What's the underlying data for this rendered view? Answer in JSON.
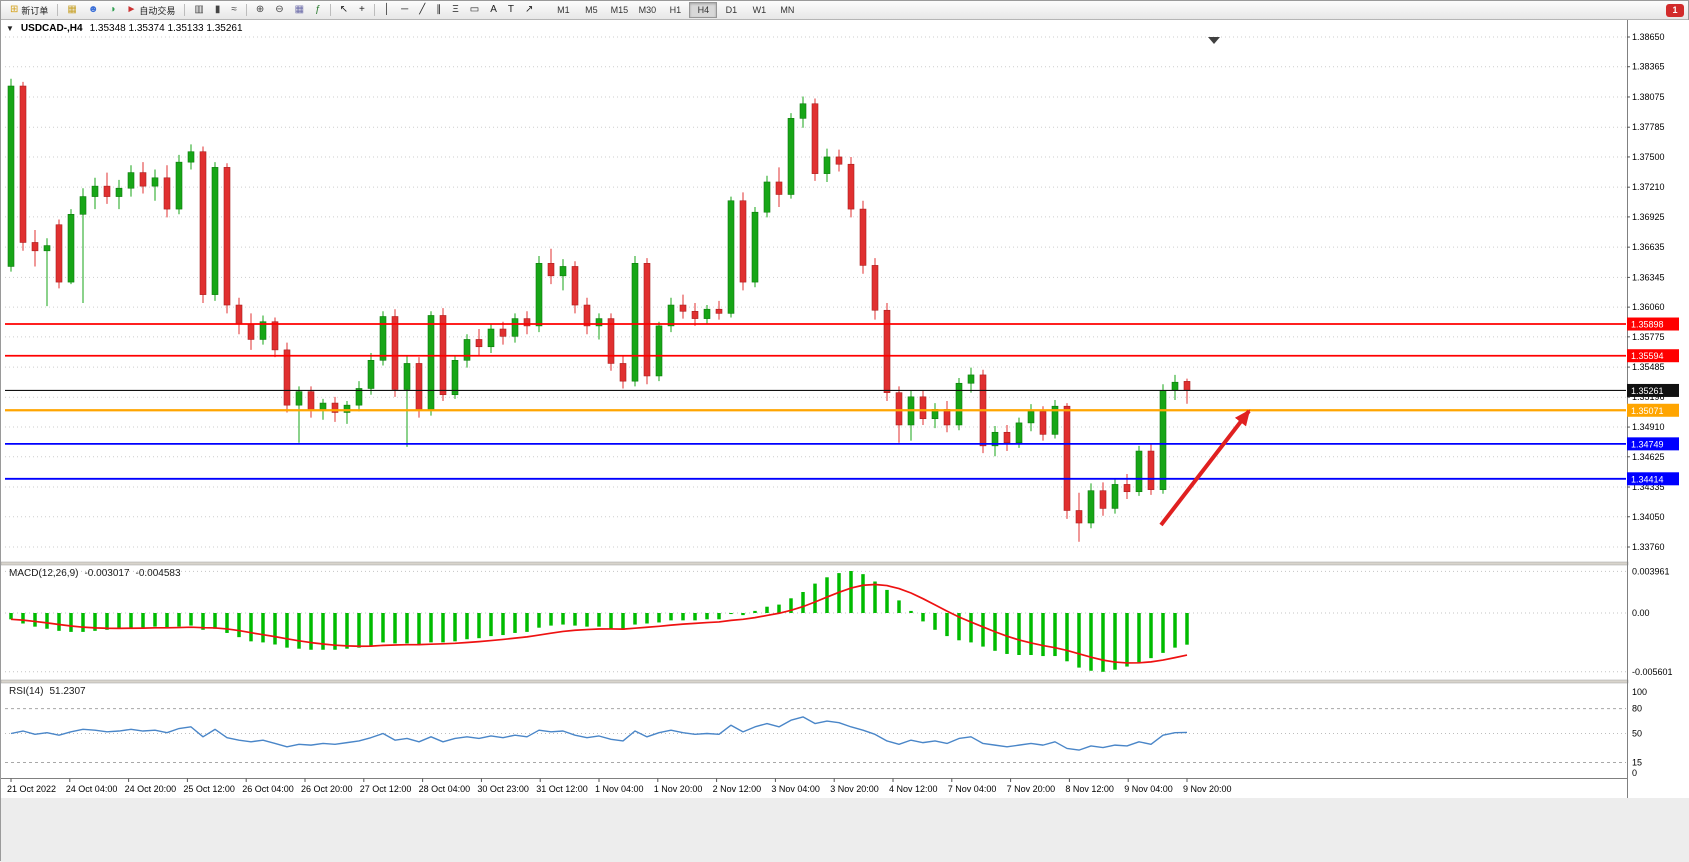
{
  "toolbar": {
    "groups": [
      {
        "type": "button",
        "name": "new-order-button",
        "icon": {
          "name": "new-order-icon",
          "glyph": "⊞",
          "color": "#d4a017"
        },
        "label": "新订单"
      },
      {
        "type": "sep"
      },
      {
        "type": "icon",
        "name": "charts-grid-button",
        "icon": {
          "name": "charts-grid-icon",
          "glyph": "▦",
          "color": "#c8a22a"
        }
      },
      {
        "type": "icon",
        "name": "market-watch-button",
        "icon": {
          "name": "market-watch-icon",
          "glyph": "☻",
          "color": "#3a6fd8"
        }
      },
      {
        "type": "icon",
        "name": "strategy-tester-button",
        "icon": {
          "name": "strategy-tester-icon",
          "glyph": "◑",
          "color": "#2e9e4f"
        }
      },
      {
        "type": "button",
        "name": "auto-trading-button",
        "icon": {
          "name": "auto-trading-icon",
          "glyph": "►",
          "color": "#cc3333"
        },
        "label": "自动交易"
      },
      {
        "type": "sep"
      },
      {
        "type": "icon",
        "name": "bar-chart-button",
        "icon": {
          "name": "bar-chart-icon",
          "glyph": "▥",
          "color": "#444"
        }
      },
      {
        "type": "icon",
        "name": "candlestick-chart-button",
        "icon": {
          "name": "candlestick-chart-icon",
          "glyph": "▮",
          "color": "#444"
        }
      },
      {
        "type": "icon",
        "name": "line-chart-button",
        "icon": {
          "name": "line-chart-icon",
          "glyph": "≈",
          "color": "#444"
        }
      },
      {
        "type": "sep"
      },
      {
        "type": "icon",
        "name": "zoom-in-button",
        "icon": {
          "name": "zoom-in-icon",
          "glyph": "⊕",
          "color": "#444"
        }
      },
      {
        "type": "icon",
        "name": "zoom-out-button",
        "icon": {
          "name": "zoom-out-icon",
          "glyph": "⊖",
          "color": "#444"
        }
      },
      {
        "type": "icon",
        "name": "tile-windows-button",
        "icon": {
          "name": "tile-windows-icon",
          "glyph": "▦",
          "color": "#6a6aa8"
        }
      },
      {
        "type": "icon",
        "name": "indicators-button",
        "icon": {
          "name": "indicators-icon",
          "glyph": "ƒ",
          "color": "#2e7d32"
        }
      },
      {
        "type": "sep"
      },
      {
        "type": "icon",
        "name": "cursor-button",
        "icon": {
          "name": "cursor-icon",
          "glyph": "↖",
          "color": "#222"
        }
      },
      {
        "type": "icon",
        "name": "crosshair-button",
        "icon": {
          "name": "crosshair-icon",
          "glyph": "+",
          "color": "#222"
        }
      },
      {
        "type": "sep"
      },
      {
        "type": "icon",
        "name": "vertical-line-button",
        "icon": {
          "name": "vertical-line-icon",
          "glyph": "│",
          "color": "#222"
        }
      },
      {
        "type": "icon",
        "name": "horizontal-line-button",
        "icon": {
          "name": "horizontal-line-icon",
          "glyph": "─",
          "color": "#222"
        }
      },
      {
        "type": "icon",
        "name": "trendline-button",
        "icon": {
          "name": "trendline-icon",
          "glyph": "╱",
          "color": "#222"
        }
      },
      {
        "type": "icon",
        "name": "channel-button",
        "icon": {
          "name": "channel-icon",
          "glyph": "∥",
          "color": "#222"
        }
      },
      {
        "type": "icon",
        "name": "fibonacci-button",
        "icon": {
          "name": "fibonacci-icon",
          "glyph": "Ξ",
          "color": "#222"
        }
      },
      {
        "type": "icon",
        "name": "shapes-button",
        "icon": {
          "name": "shapes-icon",
          "glyph": "▭",
          "color": "#222"
        }
      },
      {
        "type": "icon",
        "name": "text-button",
        "icon": {
          "name": "text-icon",
          "glyph": "A",
          "color": "#222"
        }
      },
      {
        "type": "icon",
        "name": "text-label-button",
        "icon": {
          "name": "text-label-icon",
          "glyph": "T",
          "color": "#222"
        }
      },
      {
        "type": "icon",
        "name": "arrows-button",
        "icon": {
          "name": "arrows-icon",
          "glyph": "↗",
          "color": "#222"
        }
      }
    ],
    "timeframes": [
      "M1",
      "M5",
      "M15",
      "M30",
      "H1",
      "H4",
      "D1",
      "W1",
      "MN"
    ],
    "active_timeframe": "H4",
    "notification_badge": "1"
  },
  "chart_header": {
    "menu_icon": "▼",
    "title": "USDCAD-,H4",
    "ohlc_text": "1.35348 1.35374 1.35133 1.35261"
  },
  "chart_data": {
    "type": "candlestick",
    "symbol": "USDCAD-",
    "timeframe": "H4",
    "title": "USDCAD-,H4",
    "ohlc_display": {
      "open": "1.35348",
      "high": "1.35374",
      "low": "1.35133",
      "close": "1.35261"
    },
    "price_ticks": [
      "1.38650",
      "1.38365",
      "1.38075",
      "1.37785",
      "1.37500",
      "1.37210",
      "1.36925",
      "1.36635",
      "1.36345",
      "1.36060",
      "1.35775",
      "1.35485",
      "1.35196",
      "1.34910",
      "1.34625",
      "1.34335",
      "1.34050",
      "1.33760"
    ],
    "ylim": [
      1.3376,
      1.3865
    ],
    "time_labels": [
      "21 Oct 2022",
      "24 Oct 04:00",
      "24 Oct 20:00",
      "25 Oct 12:00",
      "26 Oct 04:00",
      "26 Oct 20:00",
      "27 Oct 12:00",
      "28 Oct 04:00",
      "30 Oct 23:00",
      "31 Oct 12:00",
      "1 Nov 04:00",
      "1 Nov 20:00",
      "2 Nov 12:00",
      "3 Nov 04:00",
      "3 Nov 20:00",
      "4 Nov 12:00",
      "7 Nov 04:00",
      "7 Nov 20:00",
      "8 Nov 12:00",
      "9 Nov 04:00",
      "9 Nov 20:00"
    ],
    "colors": {
      "up": "#17a617",
      "up_stroke": "#0c7a0c",
      "down": "#e03030",
      "down_stroke": "#a81e1e",
      "grid": "#cdcdcd",
      "axis": "#808080"
    },
    "candles": [
      [
        1.3645,
        1.3825,
        1.364,
        1.3818
      ],
      [
        1.3818,
        1.3822,
        1.366,
        1.3668
      ],
      [
        1.3668,
        1.368,
        1.3645,
        1.366
      ],
      [
        1.366,
        1.3672,
        1.3607,
        1.3665
      ],
      [
        1.3685,
        1.369,
        1.3624,
        1.363
      ],
      [
        1.363,
        1.37,
        1.3628,
        1.3695
      ],
      [
        1.3695,
        1.372,
        1.361,
        1.3712
      ],
      [
        1.3712,
        1.373,
        1.37,
        1.3722
      ],
      [
        1.3722,
        1.3735,
        1.3705,
        1.3712
      ],
      [
        1.3712,
        1.3728,
        1.37,
        1.372
      ],
      [
        1.372,
        1.3742,
        1.3712,
        1.3735
      ],
      [
        1.3735,
        1.3745,
        1.3715,
        1.3722
      ],
      [
        1.3722,
        1.3738,
        1.3708,
        1.373
      ],
      [
        1.373,
        1.3742,
        1.3692,
        1.37
      ],
      [
        1.37,
        1.3752,
        1.3695,
        1.3745
      ],
      [
        1.3745,
        1.3762,
        1.3738,
        1.3755
      ],
      [
        1.3755,
        1.376,
        1.361,
        1.3618
      ],
      [
        1.3618,
        1.3745,
        1.3612,
        1.374
      ],
      [
        1.374,
        1.3744,
        1.36,
        1.3608
      ],
      [
        1.3608,
        1.3615,
        1.358,
        1.359
      ],
      [
        1.359,
        1.36,
        1.3565,
        1.3575
      ],
      [
        1.3575,
        1.3598,
        1.357,
        1.3592
      ],
      [
        1.3592,
        1.3596,
        1.3558,
        1.3565
      ],
      [
        1.3565,
        1.3572,
        1.3505,
        1.3512
      ],
      [
        1.3512,
        1.353,
        1.3476,
        1.3525
      ],
      [
        1.3525,
        1.353,
        1.35,
        1.3507
      ],
      [
        1.3507,
        1.3518,
        1.3498,
        1.3514
      ],
      [
        1.3514,
        1.352,
        1.3496,
        1.3505
      ],
      [
        1.3505,
        1.3516,
        1.3494,
        1.3512
      ],
      [
        1.3512,
        1.3535,
        1.3506,
        1.3528
      ],
      [
        1.3528,
        1.3562,
        1.3522,
        1.3555
      ],
      [
        1.3555,
        1.3602,
        1.355,
        1.3597
      ],
      [
        1.3597,
        1.3604,
        1.352,
        1.3527
      ],
      [
        1.3527,
        1.356,
        1.3472,
        1.3552
      ],
      [
        1.3552,
        1.3558,
        1.35,
        1.3508
      ],
      [
        1.3508,
        1.3602,
        1.3502,
        1.3598
      ],
      [
        1.3598,
        1.3605,
        1.3516,
        1.3522
      ],
      [
        1.3522,
        1.356,
        1.3518,
        1.3555
      ],
      [
        1.3555,
        1.358,
        1.3548,
        1.3575
      ],
      [
        1.3575,
        1.3585,
        1.356,
        1.3568
      ],
      [
        1.3568,
        1.359,
        1.3562,
        1.3585
      ],
      [
        1.3585,
        1.3592,
        1.357,
        1.3578
      ],
      [
        1.3578,
        1.36,
        1.3572,
        1.3595
      ],
      [
        1.3595,
        1.3602,
        1.358,
        1.3588
      ],
      [
        1.3588,
        1.3655,
        1.3582,
        1.3648
      ],
      [
        1.3648,
        1.3662,
        1.3628,
        1.3636
      ],
      [
        1.3636,
        1.3652,
        1.3622,
        1.3645
      ],
      [
        1.3645,
        1.365,
        1.36,
        1.3608
      ],
      [
        1.3608,
        1.3615,
        1.358,
        1.3588
      ],
      [
        1.3588,
        1.36,
        1.3575,
        1.3595
      ],
      [
        1.3595,
        1.36,
        1.3545,
        1.3552
      ],
      [
        1.3552,
        1.356,
        1.3528,
        1.3535
      ],
      [
        1.3535,
        1.3655,
        1.353,
        1.3648
      ],
      [
        1.3648,
        1.3653,
        1.3532,
        1.354
      ],
      [
        1.354,
        1.3592,
        1.3535,
        1.3588
      ],
      [
        1.3588,
        1.3615,
        1.3582,
        1.3608
      ],
      [
        1.3608,
        1.3618,
        1.3595,
        1.3602
      ],
      [
        1.3602,
        1.361,
        1.3588,
        1.3595
      ],
      [
        1.3595,
        1.3608,
        1.359,
        1.3604
      ],
      [
        1.3604,
        1.3612,
        1.3594,
        1.36
      ],
      [
        1.36,
        1.3712,
        1.3596,
        1.3708
      ],
      [
        1.3708,
        1.3716,
        1.3622,
        1.363
      ],
      [
        1.363,
        1.3702,
        1.3625,
        1.3697
      ],
      [
        1.3697,
        1.3732,
        1.3692,
        1.3726
      ],
      [
        1.3726,
        1.374,
        1.3702,
        1.3714
      ],
      [
        1.3714,
        1.3792,
        1.371,
        1.3787
      ],
      [
        1.3787,
        1.3808,
        1.3778,
        1.3801
      ],
      [
        1.3801,
        1.3806,
        1.3727,
        1.3734
      ],
      [
        1.3734,
        1.3758,
        1.3726,
        1.375
      ],
      [
        1.375,
        1.3757,
        1.3736,
        1.3743
      ],
      [
        1.3743,
        1.375,
        1.3692,
        1.37
      ],
      [
        1.37,
        1.3708,
        1.3638,
        1.3646
      ],
      [
        1.3646,
        1.3653,
        1.3594,
        1.3603
      ],
      [
        1.3603,
        1.361,
        1.3516,
        1.3524
      ],
      [
        1.3524,
        1.353,
        1.3476,
        1.3493
      ],
      [
        1.3493,
        1.3526,
        1.3478,
        1.352
      ],
      [
        1.352,
        1.3526,
        1.3493,
        1.3499
      ],
      [
        1.3499,
        1.3514,
        1.349,
        1.3508
      ],
      [
        1.3508,
        1.3516,
        1.3486,
        1.3493
      ],
      [
        1.3493,
        1.3538,
        1.3488,
        1.3533
      ],
      [
        1.3533,
        1.3548,
        1.3524,
        1.3541
      ],
      [
        1.3541,
        1.3546,
        1.3466,
        1.3473
      ],
      [
        1.3473,
        1.3492,
        1.3463,
        1.3486
      ],
      [
        1.3486,
        1.3493,
        1.3468,
        1.3476
      ],
      [
        1.3476,
        1.35,
        1.3471,
        1.3495
      ],
      [
        1.3495,
        1.3513,
        1.3487,
        1.3506
      ],
      [
        1.3506,
        1.3511,
        1.3478,
        1.3484
      ],
      [
        1.3484,
        1.3517,
        1.348,
        1.3511
      ],
      [
        1.3511,
        1.3514,
        1.3403,
        1.3411
      ],
      [
        1.3411,
        1.3428,
        1.3381,
        1.3399
      ],
      [
        1.3399,
        1.3437,
        1.3394,
        1.343
      ],
      [
        1.343,
        1.3438,
        1.3406,
        1.3413
      ],
      [
        1.3413,
        1.3441,
        1.3408,
        1.3436
      ],
      [
        1.3436,
        1.3446,
        1.3422,
        1.3429
      ],
      [
        1.3429,
        1.3473,
        1.3425,
        1.3468
      ],
      [
        1.3468,
        1.3475,
        1.3426,
        1.3431
      ],
      [
        1.3431,
        1.3532,
        1.3427,
        1.3526
      ],
      [
        1.3526,
        1.3541,
        1.3517,
        1.3534
      ],
      [
        1.35348,
        1.35374,
        1.35133,
        1.35261
      ]
    ],
    "hlines": [
      {
        "price": 1.35898,
        "label": "1.35898",
        "color": "#ff0000",
        "width": 1.8
      },
      {
        "price": 1.35594,
        "label": "1.35594",
        "color": "#ff0000",
        "width": 1.8
      },
      {
        "price": 1.35071,
        "label": "1.35071",
        "color": "#ffa500",
        "width": 2.2
      },
      {
        "price": 1.34749,
        "label": "1.34749",
        "color": "#0000ff",
        "width": 1.8
      },
      {
        "price": 1.34414,
        "label": "1.34414",
        "color": "#0000ff",
        "width": 1.8
      }
    ],
    "current_price": {
      "value": 1.35261,
      "label": "1.35261",
      "color": "#111111"
    },
    "trend_arrow": {
      "color": "#e02020",
      "from_price": 1.3405,
      "to_price": 1.352
    },
    "macd": {
      "label": "MACD(12,26,9)",
      "value_main": "-0.003017",
      "value_signal": "-0.004583",
      "scale": [
        "0.003961",
        "0.00",
        "-0.005601"
      ],
      "scale_values": [
        0.003961,
        0,
        -0.005601
      ],
      "histogram_color": "#00bb00",
      "signal_color": "#ee1111",
      "histogram": [
        -0.0006,
        -0.001,
        -0.0013,
        -0.0015,
        -0.0017,
        -0.0018,
        -0.0018,
        -0.0017,
        -0.0016,
        -0.0015,
        -0.0014,
        -0.0014,
        -0.0013,
        -0.0014,
        -0.0013,
        -0.0012,
        -0.0016,
        -0.0015,
        -0.0019,
        -0.0023,
        -0.0027,
        -0.0028,
        -0.003,
        -0.0033,
        -0.0034,
        -0.0035,
        -0.0035,
        -0.0035,
        -0.0034,
        -0.0033,
        -0.0031,
        -0.0028,
        -0.0029,
        -0.0029,
        -0.003,
        -0.0028,
        -0.0028,
        -0.0027,
        -0.0025,
        -0.0024,
        -0.0022,
        -0.0021,
        -0.0019,
        -0.0018,
        -0.0014,
        -0.0012,
        -0.0011,
        -0.0012,
        -0.0013,
        -0.0013,
        -0.0015,
        -0.0016,
        -0.0011,
        -0.001,
        -0.0009,
        -0.0007,
        -0.0007,
        -0.0007,
        -0.0006,
        -0.0006,
        -0.0001,
        -0.0002,
        0.0002,
        0.0006,
        0.0008,
        0.0014,
        0.002,
        0.0028,
        0.0034,
        0.0038,
        0.004,
        0.0037,
        0.003,
        0.0022,
        0.0012,
        0.0002,
        -0.0008,
        -0.0016,
        -0.0022,
        -0.0026,
        -0.0028,
        -0.0032,
        -0.0036,
        -0.0039,
        -0.004,
        -0.004,
        -0.0041,
        -0.0041,
        -0.0046,
        -0.0052,
        -0.0055,
        -0.0056,
        -0.0054,
        -0.0051,
        -0.0047,
        -0.0043,
        -0.0038,
        -0.0033,
        -0.003017
      ]
    },
    "rsi": {
      "label": "RSI(14)",
      "value": "51.2307",
      "scale": [
        "100",
        "80",
        "50",
        "15",
        "0"
      ],
      "scale_values": [
        100,
        80,
        50,
        15,
        0
      ],
      "levels": [
        80,
        50,
        15
      ],
      "line_color": "#4a86c8",
      "values": [
        50,
        53,
        49,
        51,
        48,
        52,
        55,
        54,
        52,
        53,
        55,
        53,
        54,
        51,
        56,
        58,
        46,
        55,
        45,
        42,
        40,
        42,
        38,
        34,
        37,
        36,
        38,
        37,
        39,
        41,
        45,
        50,
        42,
        44,
        40,
        46,
        40,
        44,
        46,
        44,
        47,
        45,
        48,
        46,
        54,
        52,
        53,
        48,
        45,
        47,
        43,
        41,
        53,
        46,
        51,
        54,
        51,
        49,
        50,
        49,
        60,
        52,
        58,
        62,
        58,
        66,
        70,
        62,
        65,
        63,
        58,
        54,
        49,
        41,
        37,
        42,
        39,
        41,
        38,
        44,
        46,
        38,
        36,
        34,
        36,
        38,
        36,
        40,
        32,
        30,
        35,
        33,
        36,
        35,
        40,
        37,
        48,
        51,
        51.23
      ]
    }
  }
}
